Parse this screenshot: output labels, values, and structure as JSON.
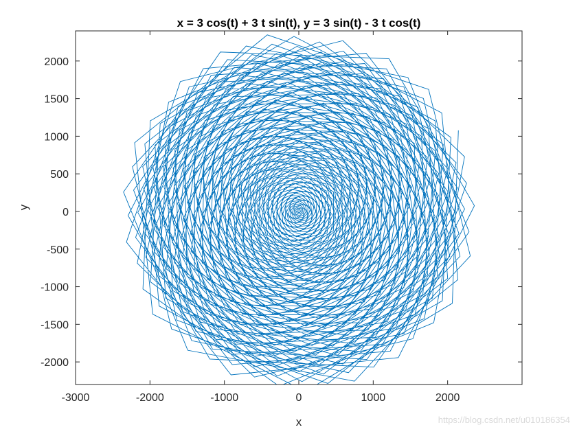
{
  "chart_data": {
    "type": "line",
    "title": "x = 3 cos(t) + 3 t sin(t), y = 3 sin(t) - 3 t cos(t)",
    "xlabel": "x",
    "ylabel": "y",
    "xlim": [
      -3000,
      3000
    ],
    "ylim": [
      -2300,
      2400
    ],
    "x_ticks": [
      -3000,
      -2000,
      -1000,
      0,
      1000,
      2000
    ],
    "x_tick_labels": [
      "-3000",
      "-2000",
      "-1000",
      "0",
      "1000",
      "2000"
    ],
    "y_ticks": [
      -2000,
      -1500,
      -1000,
      -500,
      0,
      500,
      1000,
      1500,
      2000
    ],
    "y_tick_labels": [
      "-2000",
      "-1500",
      "-1000",
      "-500",
      "0",
      "500",
      "1000",
      "1500",
      "2000"
    ],
    "grid": false,
    "box": true,
    "line_color": "#0072BD",
    "series": [
      {
        "function_x": "3 cos(t) + 3 t sin(t)",
        "function_y": "3 sin(t) - 3 t cos(t)",
        "t_range": [
          0,
          800
        ],
        "t_step": 1
      }
    ]
  },
  "watermark": "https://blog.csdn.net/u010186354"
}
